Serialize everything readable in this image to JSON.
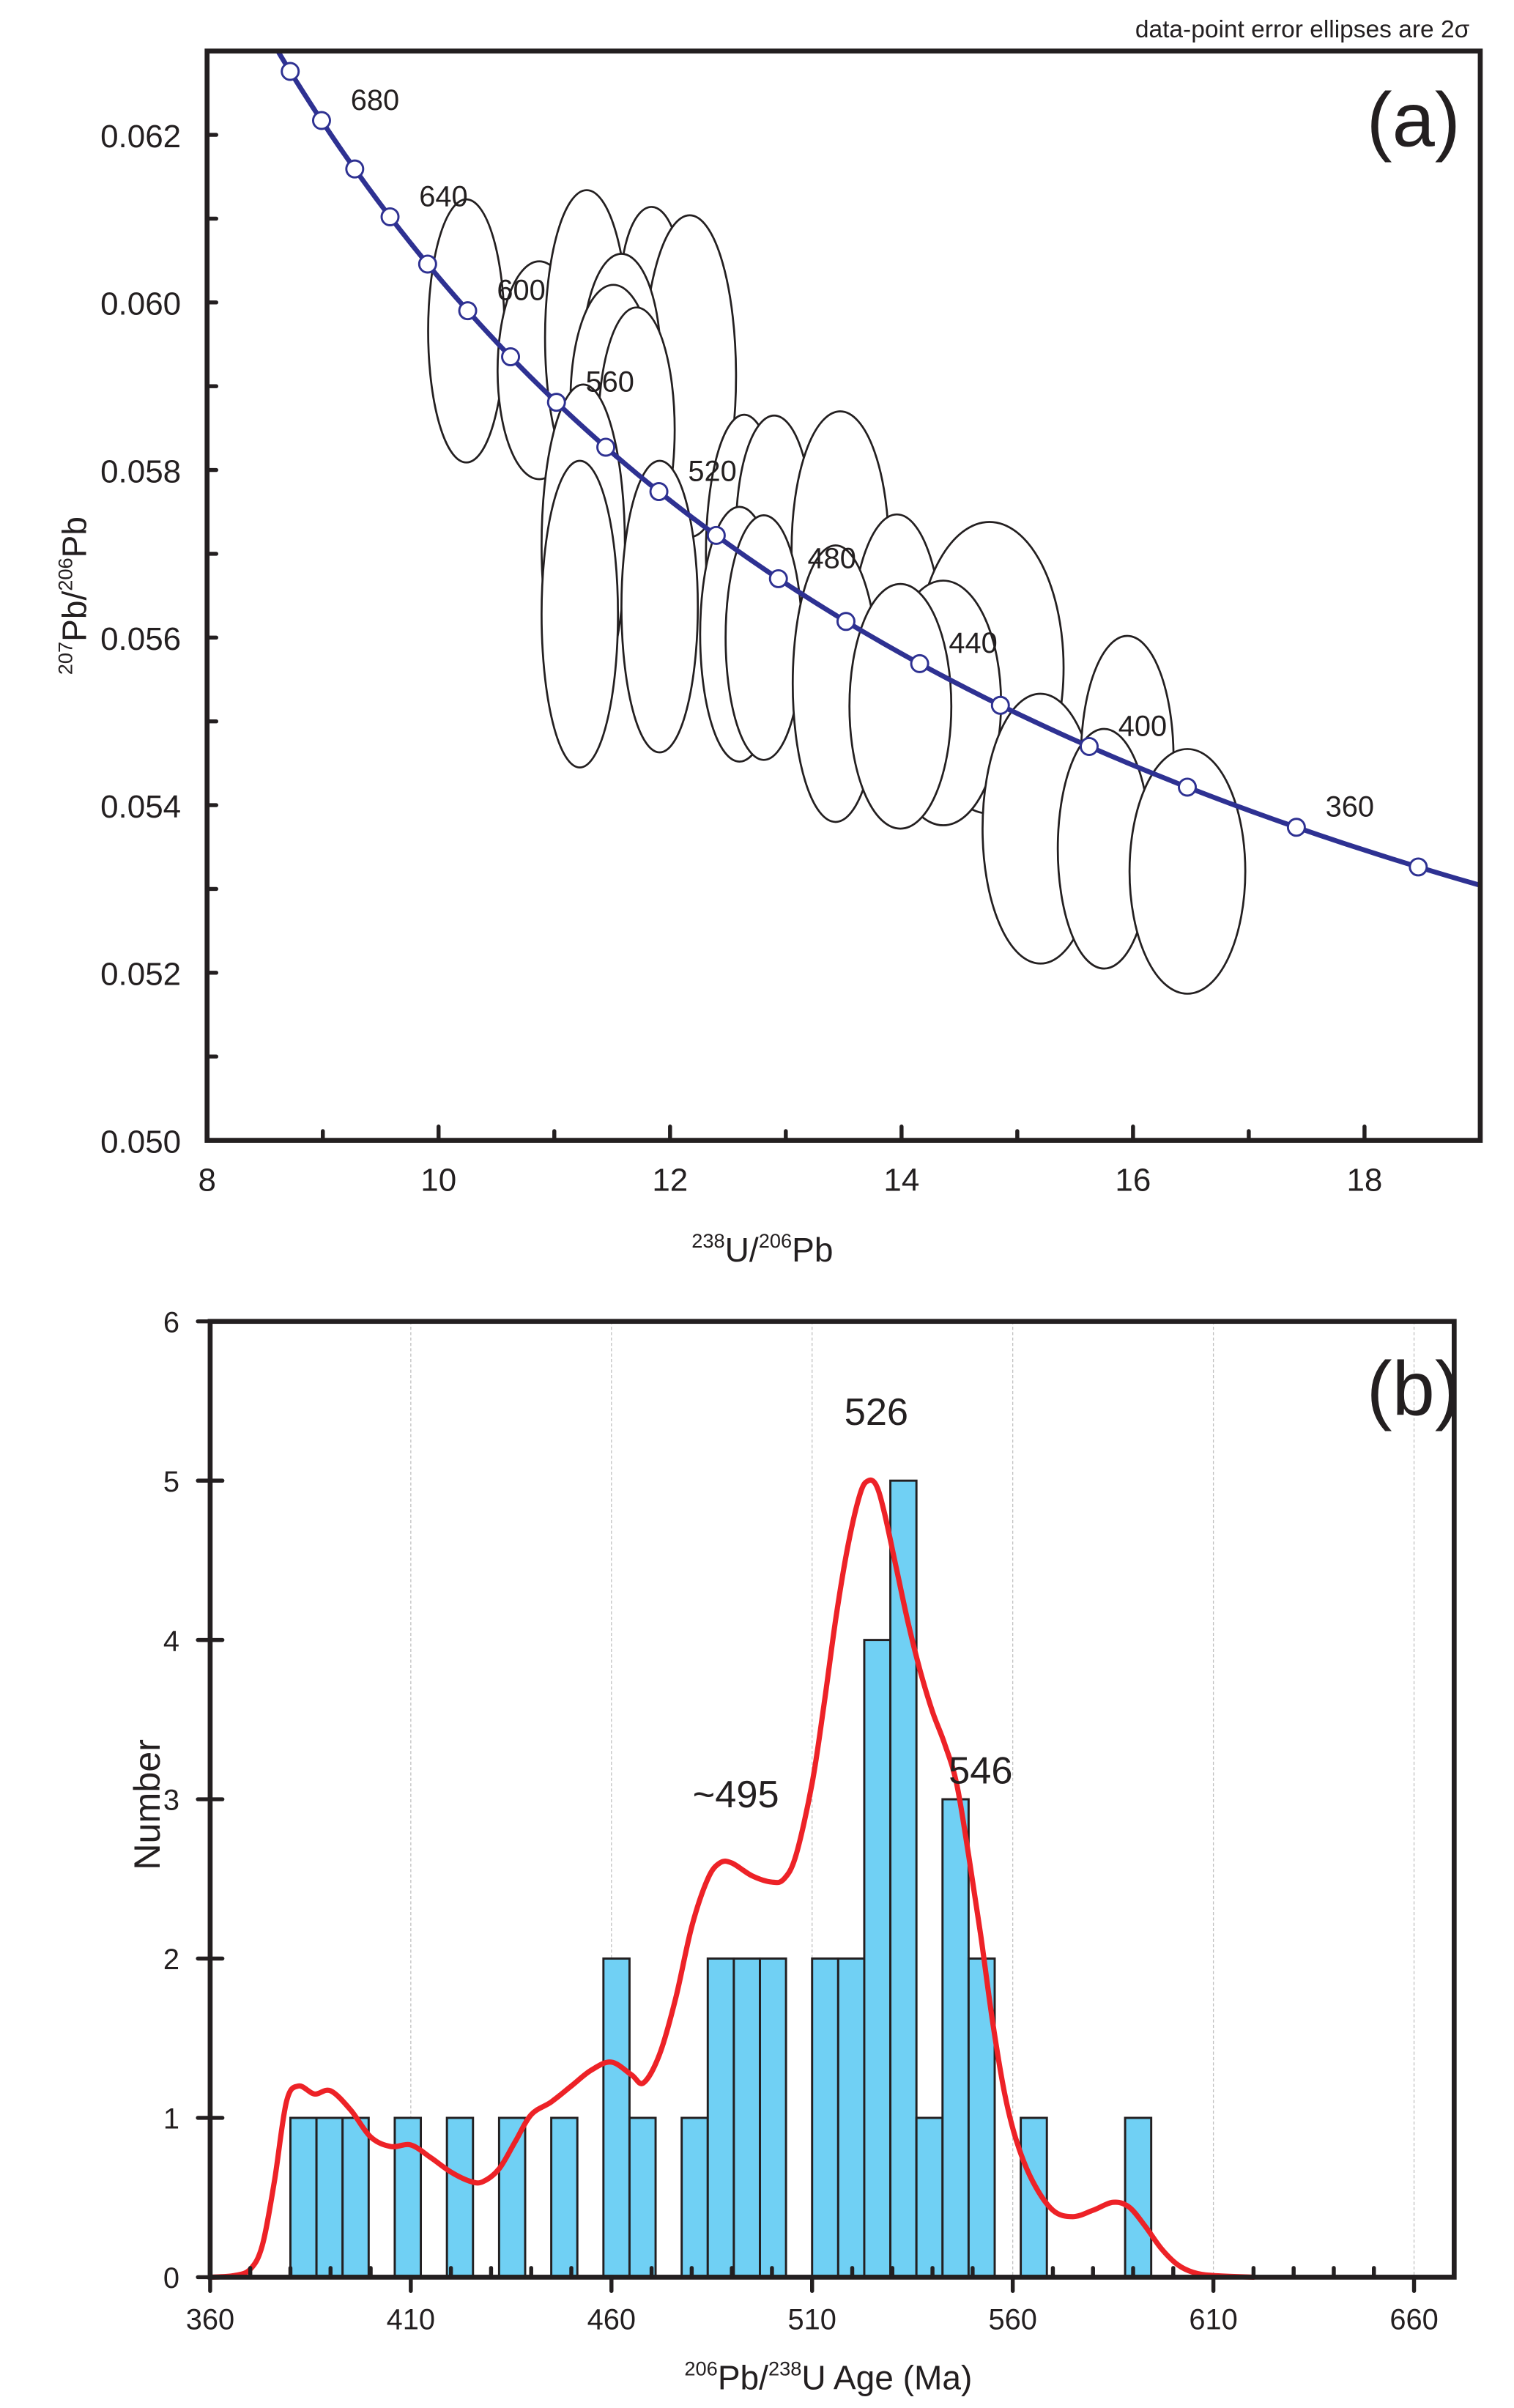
{
  "note": "data-point error ellipses are 2σ",
  "colors": {
    "concordia": "#2e3192",
    "bar_fill": "#70d0f4",
    "kde": "#ed2227",
    "ink": "#231f20"
  },
  "chart_data": [
    {
      "type": "scatter",
      "panel_label": "(a)",
      "title": "",
      "xlabel_parts": {
        "sup1": "238",
        "main1": "U/",
        "sup2": "206",
        "main2": "Pb"
      },
      "ylabel_parts": {
        "sup1": "207",
        "main1": "Pb/",
        "sup2": "206",
        "main2": "Pb"
      },
      "xlim": [
        8,
        19
      ],
      "ylim": [
        0.05,
        0.063
      ],
      "x_ticks": [
        8,
        10,
        12,
        14,
        16,
        18
      ],
      "x_tick_labels": [
        "8",
        "10",
        "12",
        "14",
        "16",
        "18"
      ],
      "x_minor_step": 1,
      "y_ticks": [
        0.05,
        0.052,
        0.054,
        0.056,
        0.058,
        0.06,
        0.062
      ],
      "y_tick_labels": [
        "0.050",
        "0.052",
        "0.054",
        "0.056",
        "0.058",
        "0.060",
        "0.062"
      ],
      "y_minor_step": 0.001,
      "grid": false,
      "concordia": {
        "age_range_ma": [
          330,
          720
        ],
        "marker_ages_ma": [
          340,
          360,
          380,
          400,
          420,
          440,
          460,
          480,
          500,
          520,
          540,
          560,
          580,
          600,
          620,
          640,
          660,
          680,
          700
        ],
        "labeled_ages_ma": [
          360,
          400,
          440,
          480,
          520,
          560,
          600,
          640,
          680
        ],
        "labels": [
          "360",
          "400",
          "440",
          "480",
          "520",
          "560",
          "600",
          "640",
          "680"
        ]
      },
      "ellipses_2sigma": [
        {
          "x": 10.24,
          "y": 0.05966,
          "sx": 0.33,
          "sy": 0.00157
        },
        {
          "x": 10.87,
          "y": 0.05919,
          "sx": 0.36,
          "sy": 0.0013
        },
        {
          "x": 11.28,
          "y": 0.05958,
          "sx": 0.36,
          "sy": 0.00176
        },
        {
          "x": 11.84,
          "y": 0.06013,
          "sx": 0.27,
          "sy": 0.00101
        },
        {
          "x": 12.17,
          "y": 0.05912,
          "sx": 0.4,
          "sy": 0.00192
        },
        {
          "x": 11.58,
          "y": 0.0593,
          "sx": 0.34,
          "sy": 0.00128
        },
        {
          "x": 11.51,
          "y": 0.05884,
          "sx": 0.37,
          "sy": 0.00137
        },
        {
          "x": 11.71,
          "y": 0.05848,
          "sx": 0.33,
          "sy": 0.00146
        },
        {
          "x": 11.25,
          "y": 0.0571,
          "sx": 0.36,
          "sy": 0.00192
        },
        {
          "x": 11.22,
          "y": 0.05628,
          "sx": 0.33,
          "sy": 0.00183
        },
        {
          "x": 11.91,
          "y": 0.05637,
          "sx": 0.33,
          "sy": 0.00174
        },
        {
          "x": 12.64,
          "y": 0.05701,
          "sx": 0.33,
          "sy": 0.00165
        },
        {
          "x": 12.9,
          "y": 0.05728,
          "sx": 0.33,
          "sy": 0.00137
        },
        {
          "x": 13.47,
          "y": 0.05705,
          "sx": 0.42,
          "sy": 0.00165
        },
        {
          "x": 12.6,
          "y": 0.05604,
          "sx": 0.34,
          "sy": 0.00152
        },
        {
          "x": 12.81,
          "y": 0.056,
          "sx": 0.33,
          "sy": 0.00146
        },
        {
          "x": 13.96,
          "y": 0.05582,
          "sx": 0.4,
          "sy": 0.00165
        },
        {
          "x": 13.43,
          "y": 0.05545,
          "sx": 0.37,
          "sy": 0.00165
        },
        {
          "x": 14.76,
          "y": 0.05564,
          "sx": 0.64,
          "sy": 0.00174
        },
        {
          "x": 14.36,
          "y": 0.05522,
          "sx": 0.5,
          "sy": 0.00146
        },
        {
          "x": 13.99,
          "y": 0.05518,
          "sx": 0.44,
          "sy": 0.00146
        },
        {
          "x": 15.2,
          "y": 0.05372,
          "sx": 0.5,
          "sy": 0.00161
        },
        {
          "x": 15.95,
          "y": 0.05456,
          "sx": 0.4,
          "sy": 0.00146
        },
        {
          "x": 15.75,
          "y": 0.05348,
          "sx": 0.4,
          "sy": 0.00143
        },
        {
          "x": 16.47,
          "y": 0.05321,
          "sx": 0.5,
          "sy": 0.00146
        }
      ]
    },
    {
      "type": "bar",
      "panel_label": "(b)",
      "title": "",
      "xlabel_parts": {
        "sup1": "206",
        "main1": "Pb/",
        "sup2": "238",
        "main2": "U Age (Ma)"
      },
      "ylabel": "Number",
      "xlim": [
        360,
        670
      ],
      "ylim": [
        0,
        6
      ],
      "x_ticks": [
        360,
        410,
        460,
        510,
        560,
        610,
        660
      ],
      "x_tick_labels": [
        "360",
        "410",
        "460",
        "510",
        "560",
        "610",
        "660"
      ],
      "x_minor_step": 10,
      "y_ticks": [
        0,
        1,
        2,
        3,
        4,
        5,
        6
      ],
      "y_tick_labels": [
        "0",
        "1",
        "2",
        "3",
        "4",
        "5",
        "6"
      ],
      "grid": true,
      "bin_start": 380,
      "bin_width": 6.5,
      "counts": [
        1,
        1,
        1,
        0,
        1,
        0,
        1,
        0,
        1,
        0,
        1,
        0,
        2,
        1,
        0,
        1,
        2,
        2,
        2,
        0,
        2,
        2,
        4,
        5,
        1,
        3,
        2,
        0,
        1,
        0,
        0,
        0,
        1
      ],
      "kde_curve": {
        "x": [
          360,
          366,
          370,
          373,
          376,
          379,
          382,
          386,
          390,
          395,
          400,
          405,
          410,
          415,
          420,
          425,
          428,
          432,
          436,
          440,
          445,
          450,
          455,
          460,
          465,
          468,
          472,
          476,
          480,
          484,
          487,
          490,
          495,
          500,
          503,
          506,
          510,
          513,
          516,
          519,
          522,
          524,
          526,
          528,
          531,
          534,
          537,
          540,
          543,
          546,
          549,
          552,
          555,
          558,
          561,
          565,
          570,
          575,
          580,
          585,
          589,
          593,
          597,
          601,
          605,
          610,
          620
        ],
        "y": [
          0,
          0.01,
          0.05,
          0.2,
          0.6,
          1.1,
          1.2,
          1.15,
          1.17,
          1.05,
          0.88,
          0.82,
          0.83,
          0.75,
          0.66,
          0.6,
          0.6,
          0.68,
          0.85,
          1.02,
          1.1,
          1.2,
          1.3,
          1.35,
          1.27,
          1.22,
          1.4,
          1.75,
          2.2,
          2.5,
          2.6,
          2.6,
          2.52,
          2.48,
          2.5,
          2.65,
          3.1,
          3.6,
          4.15,
          4.6,
          4.92,
          5.0,
          4.97,
          4.8,
          4.45,
          4.1,
          3.8,
          3.55,
          3.35,
          3.1,
          2.65,
          2.15,
          1.6,
          1.15,
          0.85,
          0.6,
          0.42,
          0.38,
          0.42,
          0.47,
          0.44,
          0.32,
          0.18,
          0.08,
          0.03,
          0.01,
          0
        ]
      },
      "annotations": [
        {
          "text": "~495",
          "x": 491,
          "y": 2.95
        },
        {
          "text": "526",
          "x": 526,
          "y": 5.35
        },
        {
          "text": "546",
          "x": 552,
          "y": 3.1
        }
      ]
    }
  ]
}
